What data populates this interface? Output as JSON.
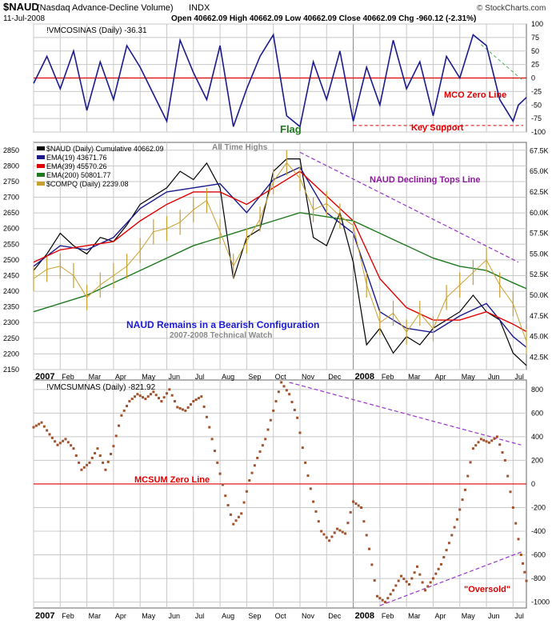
{
  "header": {
    "symbol": "$NAUD",
    "desc": "(Nasdaq Advance-Decline Volume)",
    "exchange": "INDX",
    "date": "11-Jul-2008",
    "ohlc": "Open 40662.09  High 40662.09  Low 40662.09  Close 40662.09  Chg -960.12 (-2.31%)",
    "brand": "© StockCharts.com"
  },
  "x_months": [
    "2007",
    "Feb",
    "Mar",
    "Apr",
    "May",
    "Jun",
    "Jul",
    "Aug",
    "Sep",
    "Oct",
    "Nov",
    "Dec",
    "2008",
    "Feb",
    "Mar",
    "Apr",
    "May",
    "Jun",
    "Jul"
  ],
  "colors": {
    "navy": "#1a1a8c",
    "red": "#e00000",
    "green": "#1e7a1e",
    "gold": "#c8a030",
    "brown": "#a0522d",
    "purple": "#9932cc",
    "grid": "#c8c8c8"
  },
  "chart_data": [
    {
      "type": "line",
      "title": "!VMCOSINAS (Daily) -36.31",
      "ylim": [
        -100,
        100
      ],
      "yticks": [
        100,
        75,
        50,
        25,
        0,
        -25,
        -50,
        -75,
        -100
      ],
      "series": [
        {
          "name": "!VMCOSINAS",
          "x_months": [
            0,
            0.5,
            1,
            1.5,
            2,
            2.5,
            3,
            3.5,
            4,
            4.5,
            5,
            5.5,
            6,
            6.5,
            7,
            7.5,
            8,
            8.5,
            9,
            9.5,
            10,
            10.5,
            11,
            11.5,
            12,
            12.5,
            13,
            13.5,
            14,
            14.5,
            15,
            15.5,
            16,
            16.5,
            17,
            17.5,
            18,
            18.2,
            18.5
          ],
          "values": [
            -10,
            40,
            -20,
            50,
            -60,
            30,
            -40,
            60,
            20,
            -30,
            -80,
            70,
            10,
            -40,
            60,
            -90,
            -20,
            40,
            80,
            -70,
            -90,
            30,
            -40,
            50,
            -80,
            20,
            -50,
            70,
            -20,
            30,
            -70,
            40,
            0,
            80,
            60,
            -40,
            -80,
            -50,
            -36
          ]
        }
      ],
      "annotations": [
        "Flag",
        "MCO Zero Line",
        "Key Support"
      ]
    },
    {
      "type": "line",
      "title": "$NAUD (Daily) Cumulative 40662.09",
      "ylim": [
        2150,
        2875
      ],
      "yticks": [
        2850,
        2800,
        2750,
        2700,
        2650,
        2600,
        2550,
        2500,
        2450,
        2400,
        2350,
        2300,
        2250,
        2200,
        2150
      ],
      "y2lim": [
        41000,
        68500
      ],
      "y2ticks": [
        "67.5K",
        "65.0K",
        "62.5K",
        "60.0K",
        "57.5K",
        "55.0K",
        "52.5K",
        "50.0K",
        "47.5K",
        "45.0K",
        "42.5K"
      ],
      "legend": [
        {
          "label": "$NAUD (Daily) Cumulative 40662.09",
          "color": "#000000"
        },
        {
          "label": "EMA(19) 43671.76",
          "color": "#1a1a8c"
        },
        {
          "label": "EMA(39) 45570.26",
          "color": "#e00000"
        },
        {
          "label": "EMA(200) 50801.77",
          "color": "#1e7a1e"
        },
        {
          "label": "$COMPQ (Daily) 2239.08",
          "color": "#c8a030"
        }
      ],
      "series": [
        {
          "name": "$NAUD",
          "x_months": [
            0,
            0.5,
            1,
            1.5,
            2,
            2.5,
            3,
            3.5,
            4,
            4.5,
            5,
            5.5,
            6,
            6.5,
            7,
            7.5,
            8,
            8.5,
            9,
            9.5,
            10,
            10.5,
            11,
            11.5,
            12,
            12.5,
            13,
            13.5,
            14,
            14.5,
            15,
            15.5,
            16,
            16.5,
            17,
            17.5,
            18,
            18.5
          ],
          "values": [
            53000,
            55000,
            57500,
            56000,
            55000,
            57000,
            56500,
            58500,
            61000,
            62000,
            63000,
            65000,
            64000,
            66000,
            63000,
            52000,
            57000,
            58000,
            65000,
            66500,
            66500,
            57000,
            56000,
            60000,
            54000,
            44000,
            46000,
            43000,
            45000,
            44000,
            46000,
            47000,
            48000,
            50000,
            48000,
            47000,
            43000,
            41500
          ]
        },
        {
          "name": "EMA(19)",
          "x_months": [
            0,
            1,
            2,
            3,
            4,
            5,
            6,
            7,
            8,
            9,
            10,
            11,
            12,
            13,
            14,
            15,
            16,
            17,
            18,
            18.5
          ],
          "values": [
            53500,
            56000,
            55500,
            57000,
            60500,
            62500,
            63000,
            63500,
            60000,
            64000,
            65500,
            60000,
            57500,
            48000,
            46000,
            45500,
            47500,
            49000,
            45000,
            43700
          ]
        },
        {
          "name": "EMA(39)",
          "x_months": [
            0,
            1,
            2,
            3,
            4,
            5,
            6,
            7,
            8,
            9,
            10,
            11,
            12,
            13,
            14,
            15,
            16,
            17,
            18,
            18.5
          ],
          "values": [
            54000,
            55500,
            56000,
            56500,
            59000,
            61000,
            62500,
            62500,
            61000,
            63000,
            65000,
            62000,
            59000,
            52000,
            48500,
            47000,
            47000,
            48000,
            46500,
            45600
          ]
        },
        {
          "name": "EMA(200)",
          "x_months": [
            0,
            2,
            4,
            6,
            8,
            9,
            10,
            11,
            12,
            13,
            14,
            15,
            16,
            17,
            18,
            18.5
          ],
          "values": [
            48000,
            50000,
            53000,
            56000,
            58000,
            59000,
            60000,
            59500,
            59000,
            57500,
            56000,
            54500,
            53500,
            53000,
            51500,
            50800
          ]
        },
        {
          "name": "$COMPQ",
          "x_months": [
            0,
            0.5,
            1,
            1.5,
            2,
            2.5,
            3,
            3.5,
            4,
            4.5,
            5,
            5.5,
            6,
            6.5,
            7,
            7.5,
            8,
            8.5,
            9,
            9.5,
            10,
            10.5,
            11,
            11.5,
            12,
            12.5,
            13,
            13.5,
            14,
            14.5,
            15,
            15.5,
            16,
            16.5,
            17,
            17.5,
            18,
            18.5
          ],
          "values": [
            2440,
            2470,
            2480,
            2450,
            2380,
            2420,
            2450,
            2480,
            2530,
            2590,
            2600,
            2620,
            2660,
            2690,
            2590,
            2480,
            2560,
            2630,
            2750,
            2810,
            2760,
            2660,
            2680,
            2640,
            2610,
            2420,
            2300,
            2330,
            2270,
            2330,
            2280,
            2380,
            2420,
            2460,
            2500,
            2420,
            2360,
            2240
          ]
        }
      ],
      "annotations": [
        "All Time Highs",
        "NAUD Declining Tops Line",
        "NAUD Remains in a Bearish Configuration",
        "2007-2008 Technical Watch"
      ]
    },
    {
      "type": "scatter",
      "title": "!VMCSUMNAS (Daily) -821.92",
      "ylim": [
        -1050,
        880
      ],
      "yticks": [
        800,
        600,
        400,
        200,
        0,
        -200,
        -400,
        -600,
        -800,
        -1000
      ],
      "series": [
        {
          "name": "!VMCSUMNAS",
          "x_months": [
            0,
            0.3,
            0.6,
            0.9,
            1.2,
            1.5,
            1.8,
            2.1,
            2.4,
            2.7,
            3,
            3.3,
            3.6,
            3.9,
            4.2,
            4.5,
            4.8,
            5.1,
            5.4,
            5.7,
            6,
            6.3,
            6.6,
            6.9,
            7.2,
            7.5,
            7.8,
            8.1,
            8.4,
            8.7,
            9,
            9.3,
            9.6,
            9.9,
            10.2,
            10.5,
            10.8,
            11.1,
            11.4,
            11.7,
            12,
            12.3,
            12.6,
            12.9,
            13.2,
            13.5,
            13.8,
            14.1,
            14.4,
            14.7,
            15,
            15.3,
            15.6,
            15.9,
            16.2,
            16.5,
            16.8,
            17.1,
            17.4,
            17.7,
            18,
            18.3,
            18.5
          ],
          "values": [
            480,
            520,
            420,
            330,
            380,
            300,
            120,
            180,
            300,
            120,
            320,
            580,
            700,
            760,
            720,
            780,
            700,
            800,
            650,
            620,
            700,
            740,
            480,
            180,
            -100,
            -340,
            -250,
            30,
            220,
            380,
            620,
            860,
            760,
            560,
            180,
            -150,
            -400,
            -480,
            -380,
            -420,
            -150,
            -200,
            -550,
            -950,
            -1000,
            -900,
            -780,
            -850,
            -700,
            -900,
            -800,
            -680,
            -500,
            -300,
            -50,
            300,
            380,
            350,
            400,
            200,
            -200,
            -600,
            -820
          ]
        }
      ],
      "annotations": [
        "MCSUM Zero Line",
        "\"Oversold\""
      ]
    }
  ]
}
